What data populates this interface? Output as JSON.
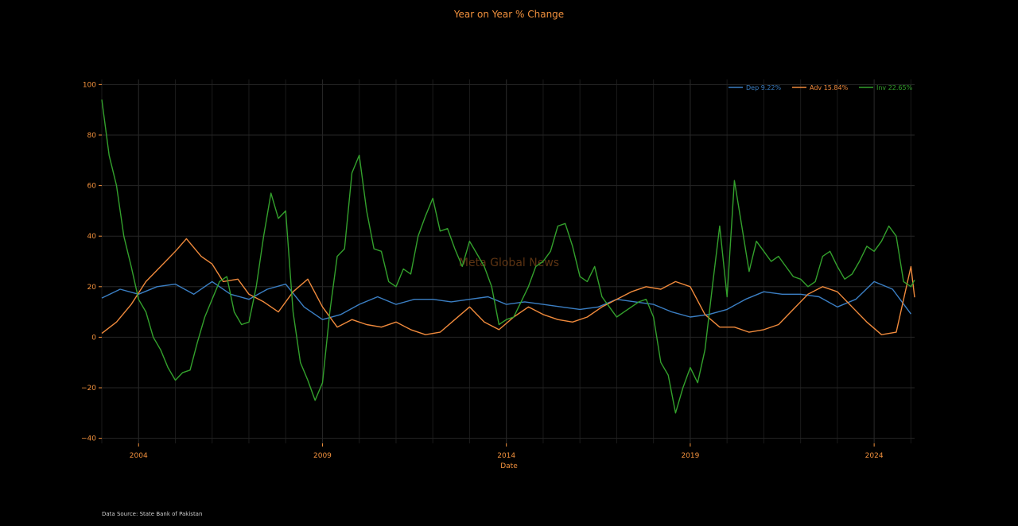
{
  "chart_data": {
    "type": "line",
    "title": "Year on Year % Change",
    "xlabel": "Date",
    "ylabel": "",
    "xlim": [
      2003.0,
      2025.1
    ],
    "ylim": [
      -42,
      102
    ],
    "yticks": [
      100,
      80,
      60,
      40,
      20,
      0,
      -20,
      -40
    ],
    "yticks_labels": [
      "100",
      "80",
      "60",
      "40",
      "20",
      "0",
      "−20",
      "−40"
    ],
    "xticks": [
      2004,
      2009,
      2014,
      2019,
      2024
    ],
    "xticks_labels": [
      "2004",
      "2009",
      "2014",
      "2019",
      "2024"
    ],
    "grid": true,
    "legend_position": "top-right",
    "watermark": "Meta Global News",
    "source": "Data Source: State Bank of Pakistan",
    "series": [
      {
        "name": "Dep 9.22%",
        "color": "#3b7fc4",
        "points": [
          [
            2003.0,
            15.5
          ],
          [
            2003.5,
            19
          ],
          [
            2004.0,
            17
          ],
          [
            2004.5,
            20
          ],
          [
            2005.0,
            21
          ],
          [
            2005.5,
            17
          ],
          [
            2006.0,
            22
          ],
          [
            2006.5,
            17
          ],
          [
            2007.0,
            15
          ],
          [
            2007.5,
            19
          ],
          [
            2008.0,
            21
          ],
          [
            2008.5,
            12
          ],
          [
            2009.0,
            7
          ],
          [
            2009.5,
            9
          ],
          [
            2010.0,
            13
          ],
          [
            2010.5,
            16
          ],
          [
            2011.0,
            13
          ],
          [
            2011.5,
            15
          ],
          [
            2012.0,
            15
          ],
          [
            2012.5,
            14
          ],
          [
            2013.0,
            15
          ],
          [
            2013.5,
            16
          ],
          [
            2014.0,
            13
          ],
          [
            2014.5,
            14
          ],
          [
            2015.0,
            13
          ],
          [
            2015.5,
            12
          ],
          [
            2016.0,
            11
          ],
          [
            2016.5,
            12
          ],
          [
            2017.0,
            15
          ],
          [
            2017.5,
            14
          ],
          [
            2018.0,
            13
          ],
          [
            2018.5,
            10
          ],
          [
            2019.0,
            8
          ],
          [
            2019.5,
            9
          ],
          [
            2020.0,
            11
          ],
          [
            2020.5,
            15
          ],
          [
            2021.0,
            18
          ],
          [
            2021.5,
            17
          ],
          [
            2022.0,
            17
          ],
          [
            2022.5,
            16
          ],
          [
            2023.0,
            12
          ],
          [
            2023.5,
            15
          ],
          [
            2024.0,
            22
          ],
          [
            2024.5,
            19
          ],
          [
            2025.0,
            9.2
          ]
        ]
      },
      {
        "name": "Adv 15.84%",
        "color": "#f08a3c",
        "points": [
          [
            2003.0,
            1.5
          ],
          [
            2003.4,
            6
          ],
          [
            2003.8,
            13
          ],
          [
            2004.2,
            22
          ],
          [
            2004.6,
            28
          ],
          [
            2005.0,
            34
          ],
          [
            2005.3,
            39
          ],
          [
            2005.7,
            32
          ],
          [
            2006.0,
            29
          ],
          [
            2006.3,
            22
          ],
          [
            2006.7,
            23
          ],
          [
            2007.0,
            17
          ],
          [
            2007.4,
            14
          ],
          [
            2007.8,
            10
          ],
          [
            2008.2,
            18
          ],
          [
            2008.6,
            23
          ],
          [
            2009.0,
            12
          ],
          [
            2009.4,
            4
          ],
          [
            2009.8,
            7
          ],
          [
            2010.2,
            5
          ],
          [
            2010.6,
            4
          ],
          [
            2011.0,
            6
          ],
          [
            2011.4,
            3
          ],
          [
            2011.8,
            1
          ],
          [
            2012.2,
            2
          ],
          [
            2012.6,
            7
          ],
          [
            2013.0,
            12
          ],
          [
            2013.4,
            6
          ],
          [
            2013.8,
            3
          ],
          [
            2014.2,
            8
          ],
          [
            2014.6,
            12
          ],
          [
            2015.0,
            9
          ],
          [
            2015.4,
            7
          ],
          [
            2015.8,
            6
          ],
          [
            2016.2,
            8
          ],
          [
            2016.6,
            12
          ],
          [
            2017.0,
            15
          ],
          [
            2017.4,
            18
          ],
          [
            2017.8,
            20
          ],
          [
            2018.2,
            19
          ],
          [
            2018.6,
            22
          ],
          [
            2019.0,
            20
          ],
          [
            2019.4,
            9
          ],
          [
            2019.8,
            4
          ],
          [
            2020.2,
            4
          ],
          [
            2020.6,
            2
          ],
          [
            2021.0,
            3
          ],
          [
            2021.4,
            5
          ],
          [
            2021.8,
            11
          ],
          [
            2022.2,
            17
          ],
          [
            2022.6,
            20
          ],
          [
            2023.0,
            18
          ],
          [
            2023.4,
            12
          ],
          [
            2023.8,
            6
          ],
          [
            2024.2,
            1
          ],
          [
            2024.6,
            2
          ],
          [
            2025.0,
            28
          ],
          [
            2025.1,
            15.8
          ]
        ]
      },
      {
        "name": "Inv 22.65%",
        "color": "#33a02c",
        "points": [
          [
            2003.0,
            94
          ],
          [
            2003.2,
            72
          ],
          [
            2003.4,
            60
          ],
          [
            2003.6,
            40
          ],
          [
            2003.8,
            28
          ],
          [
            2004.0,
            15
          ],
          [
            2004.2,
            10
          ],
          [
            2004.4,
            0
          ],
          [
            2004.6,
            -5
          ],
          [
            2004.8,
            -12
          ],
          [
            2005.0,
            -17
          ],
          [
            2005.2,
            -14
          ],
          [
            2005.4,
            -13
          ],
          [
            2005.6,
            -2
          ],
          [
            2005.8,
            8
          ],
          [
            2006.0,
            15
          ],
          [
            2006.2,
            22
          ],
          [
            2006.4,
            24
          ],
          [
            2006.6,
            10
          ],
          [
            2006.8,
            5
          ],
          [
            2007.0,
            6
          ],
          [
            2007.2,
            20
          ],
          [
            2007.4,
            40
          ],
          [
            2007.6,
            57
          ],
          [
            2007.8,
            47
          ],
          [
            2008.0,
            50
          ],
          [
            2008.2,
            10
          ],
          [
            2008.4,
            -10
          ],
          [
            2008.6,
            -17
          ],
          [
            2008.8,
            -25
          ],
          [
            2009.0,
            -18
          ],
          [
            2009.2,
            10
          ],
          [
            2009.4,
            32
          ],
          [
            2009.6,
            35
          ],
          [
            2009.8,
            65
          ],
          [
            2010.0,
            72
          ],
          [
            2010.2,
            50
          ],
          [
            2010.4,
            35
          ],
          [
            2010.6,
            34
          ],
          [
            2010.8,
            22
          ],
          [
            2011.0,
            20
          ],
          [
            2011.2,
            27
          ],
          [
            2011.4,
            25
          ],
          [
            2011.6,
            40
          ],
          [
            2011.8,
            48
          ],
          [
            2012.0,
            55
          ],
          [
            2012.2,
            42
          ],
          [
            2012.4,
            43
          ],
          [
            2012.6,
            35
          ],
          [
            2012.8,
            28
          ],
          [
            2013.0,
            38
          ],
          [
            2013.2,
            33
          ],
          [
            2013.4,
            28
          ],
          [
            2013.6,
            20
          ],
          [
            2013.8,
            5
          ],
          [
            2014.0,
            7
          ],
          [
            2014.2,
            8
          ],
          [
            2014.4,
            14
          ],
          [
            2014.6,
            20
          ],
          [
            2014.8,
            28
          ],
          [
            2015.0,
            30
          ],
          [
            2015.2,
            34
          ],
          [
            2015.4,
            44
          ],
          [
            2015.6,
            45
          ],
          [
            2015.8,
            36
          ],
          [
            2016.0,
            24
          ],
          [
            2016.2,
            22
          ],
          [
            2016.4,
            28
          ],
          [
            2016.6,
            16
          ],
          [
            2016.8,
            12
          ],
          [
            2017.0,
            8
          ],
          [
            2017.2,
            10
          ],
          [
            2017.4,
            12
          ],
          [
            2017.6,
            14
          ],
          [
            2017.8,
            15
          ],
          [
            2018.0,
            8
          ],
          [
            2018.2,
            -10
          ],
          [
            2018.4,
            -15
          ],
          [
            2018.6,
            -30
          ],
          [
            2018.8,
            -20
          ],
          [
            2019.0,
            -12
          ],
          [
            2019.2,
            -18
          ],
          [
            2019.4,
            -5
          ],
          [
            2019.6,
            20
          ],
          [
            2019.8,
            44
          ],
          [
            2020.0,
            16
          ],
          [
            2020.2,
            62
          ],
          [
            2020.4,
            44
          ],
          [
            2020.6,
            26
          ],
          [
            2020.8,
            38
          ],
          [
            2021.0,
            34
          ],
          [
            2021.2,
            30
          ],
          [
            2021.4,
            32
          ],
          [
            2021.6,
            28
          ],
          [
            2021.8,
            24
          ],
          [
            2022.0,
            23
          ],
          [
            2022.2,
            20
          ],
          [
            2022.4,
            22
          ],
          [
            2022.6,
            32
          ],
          [
            2022.8,
            34
          ],
          [
            2023.0,
            28
          ],
          [
            2023.2,
            23
          ],
          [
            2023.4,
            25
          ],
          [
            2023.6,
            30
          ],
          [
            2023.8,
            36
          ],
          [
            2024.0,
            34
          ],
          [
            2024.2,
            38
          ],
          [
            2024.4,
            44
          ],
          [
            2024.6,
            40
          ],
          [
            2024.8,
            22
          ],
          [
            2025.0,
            20
          ],
          [
            2025.1,
            22.65
          ]
        ]
      }
    ]
  }
}
